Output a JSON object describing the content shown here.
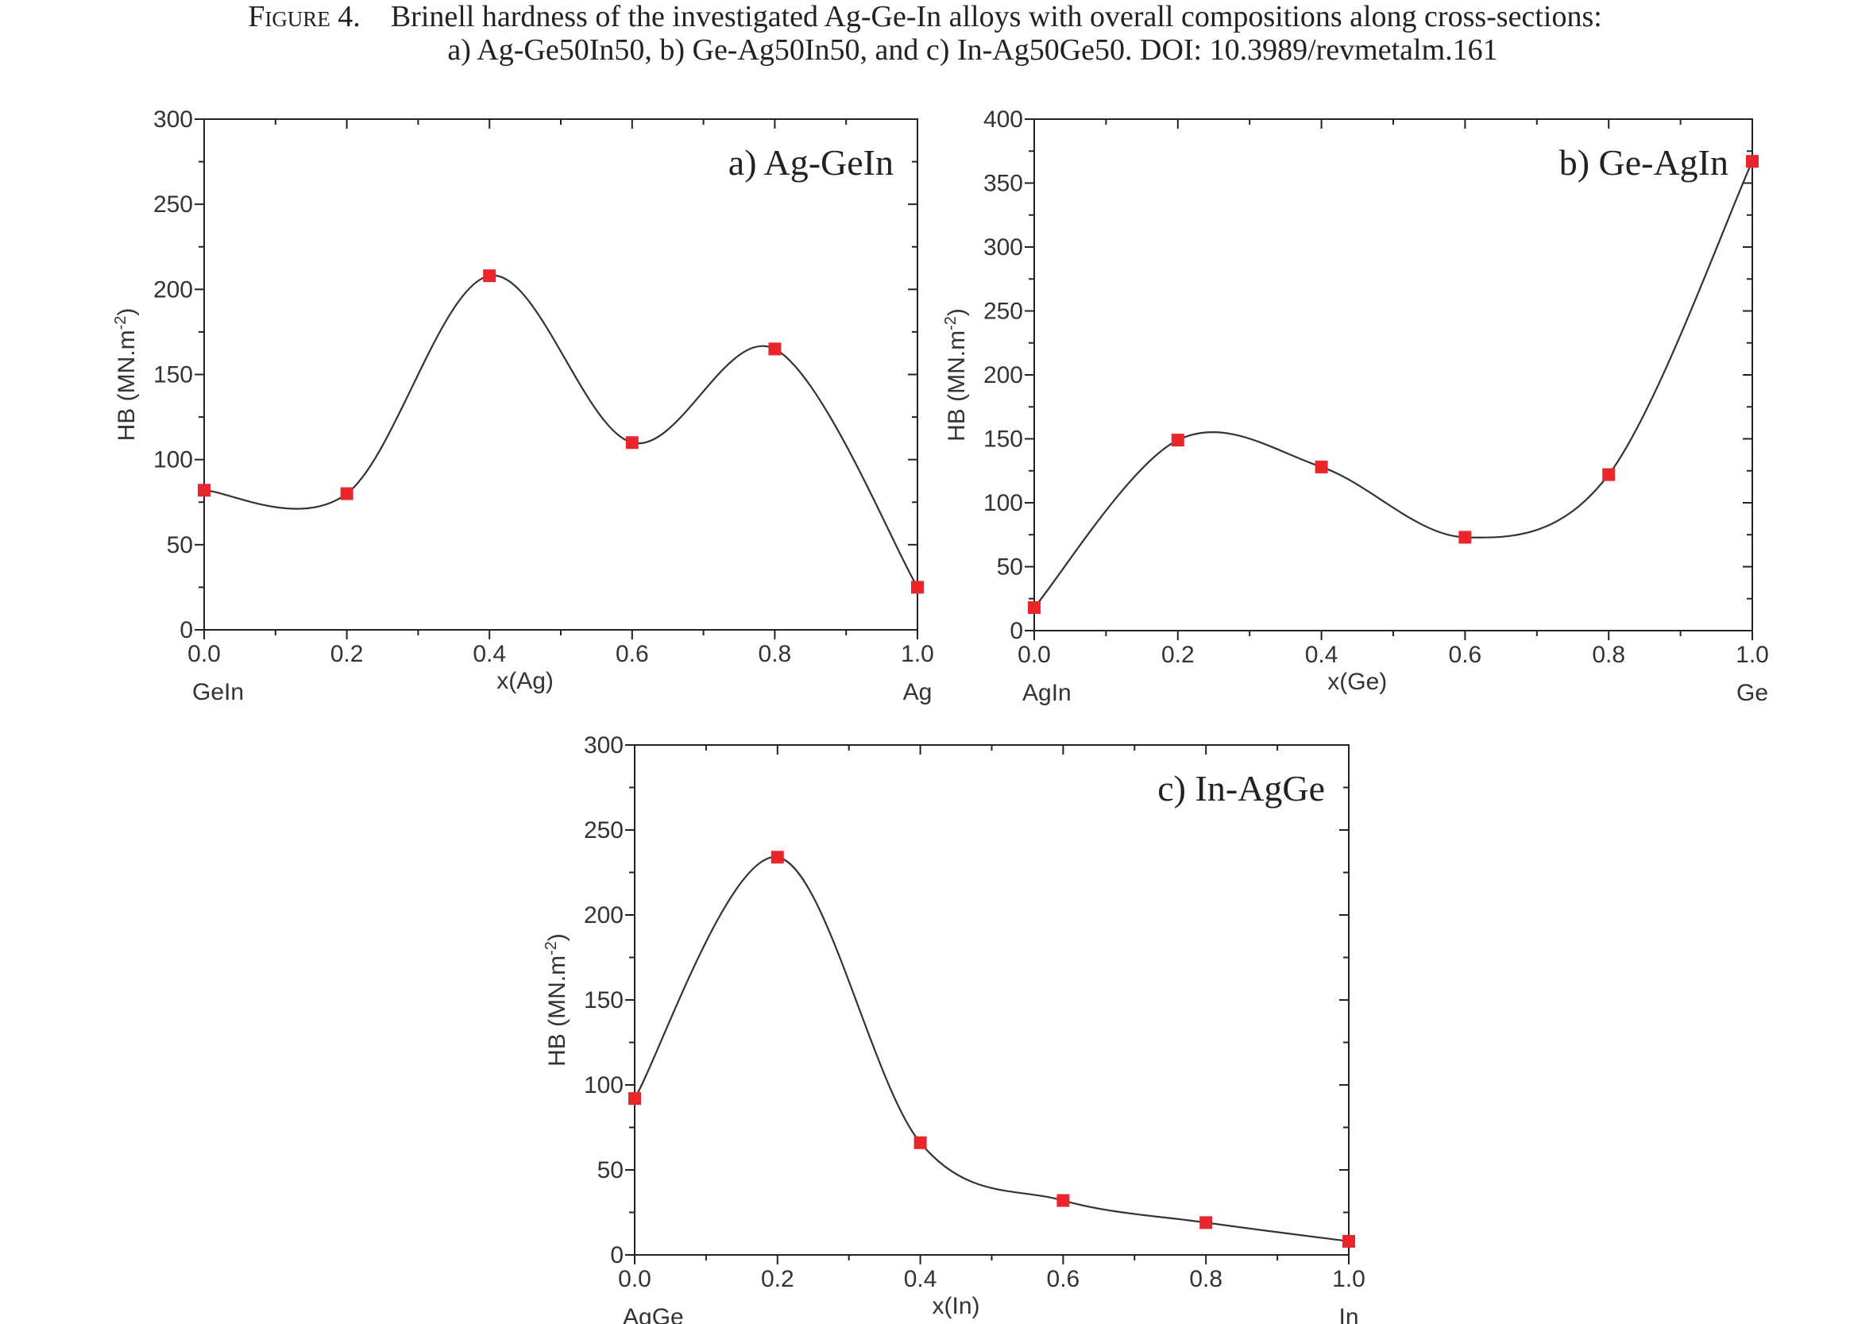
{
  "figure": {
    "caption_label": "Figure 4.",
    "caption_line1": "Brinell hardness of the investigated Ag-Ge-In alloys with overall compositions along cross-sections:",
    "caption_line2": "a) Ag-Ge50In50, b) Ge-Ag50In50, and c) In-Ag50Ge50. DOI: 10.3989/revmetalm.161"
  },
  "colors": {
    "marker": "#e8262b",
    "curve": "#333333",
    "axis": "#222222"
  },
  "chart_data": [
    {
      "type": "line",
      "title": "a) Ag-GeIn",
      "xlabel": "x(Ag)",
      "ylabel": "HB (MN.m-2)",
      "x_left_end_label": "GeIn",
      "x_right_end_label": "Ag",
      "xlim": [
        0,
        1
      ],
      "ylim": [
        0,
        300
      ],
      "x_ticks": [
        0.0,
        0.2,
        0.4,
        0.6,
        0.8,
        1.0
      ],
      "x_tick_labels": [
        "0.0",
        "0.2",
        "0.4",
        "0.6",
        "0.8",
        "1.0"
      ],
      "y_ticks": [
        0,
        50,
        100,
        150,
        200,
        250,
        300
      ],
      "y_tick_labels": [
        "0",
        "50",
        "100",
        "150",
        "200",
        "250",
        "300"
      ],
      "x": [
        0.0,
        0.2,
        0.4,
        0.6,
        0.8,
        1.0
      ],
      "y": [
        82,
        80,
        208,
        110,
        165,
        25
      ],
      "grid": false,
      "legend": "none"
    },
    {
      "type": "line",
      "title": "b) Ge-AgIn",
      "xlabel": "x(Ge)",
      "ylabel": "HB (MN.m-2)",
      "x_left_end_label": "AgIn",
      "x_right_end_label": "Ge",
      "xlim": [
        0,
        1
      ],
      "ylim": [
        0,
        400
      ],
      "x_ticks": [
        0.0,
        0.2,
        0.4,
        0.6,
        0.8,
        1.0
      ],
      "x_tick_labels": [
        "0.0",
        "0.2",
        "0.4",
        "0.6",
        "0.8",
        "1.0"
      ],
      "y_ticks": [
        0,
        50,
        100,
        150,
        200,
        250,
        300,
        350,
        400
      ],
      "y_tick_labels": [
        "0",
        "50",
        "100",
        "150",
        "200",
        "250",
        "300",
        "350",
        "400"
      ],
      "x": [
        0.0,
        0.2,
        0.4,
        0.6,
        0.8,
        1.0
      ],
      "y": [
        18,
        149,
        128,
        73,
        122,
        367
      ],
      "grid": false,
      "legend": "none"
    },
    {
      "type": "line",
      "title": "c) In-AgGe",
      "xlabel": "x(In)",
      "ylabel": "HB (MN.m-2)",
      "x_left_end_label": "AgGe",
      "x_right_end_label": "In",
      "xlim": [
        0,
        1
      ],
      "ylim": [
        0,
        300
      ],
      "x_ticks": [
        0.0,
        0.2,
        0.4,
        0.6,
        0.8,
        1.0
      ],
      "x_tick_labels": [
        "0.0",
        "0.2",
        "0.4",
        "0.6",
        "0.8",
        "1.0"
      ],
      "y_ticks": [
        0,
        50,
        100,
        150,
        200,
        250,
        300
      ],
      "y_tick_labels": [
        "0",
        "50",
        "100",
        "150",
        "200",
        "250",
        "300"
      ],
      "x": [
        0.0,
        0.2,
        0.4,
        0.6,
        0.8,
        1.0
      ],
      "y": [
        92,
        234,
        66,
        32,
        19,
        8
      ],
      "grid": false,
      "legend": "none"
    }
  ]
}
